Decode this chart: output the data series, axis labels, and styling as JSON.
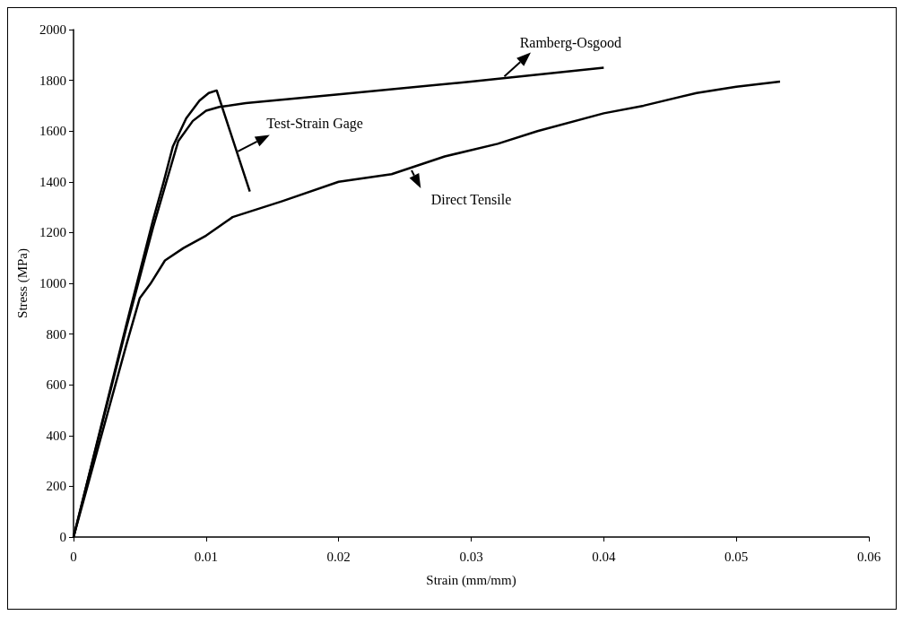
{
  "chart_data": {
    "type": "line",
    "xlabel": "Strain (mm/mm)",
    "ylabel": "Stress (MPa)",
    "xlim": [
      0,
      0.06
    ],
    "xticks": [
      0,
      0.01,
      0.02,
      0.03,
      0.04,
      0.05,
      0.06
    ],
    "ylim": [
      0,
      2000
    ],
    "yticks": [
      0,
      200,
      400,
      600,
      800,
      1000,
      1200,
      1400,
      1600,
      1800,
      2000
    ],
    "grid": false,
    "legend": false,
    "marker": "none",
    "line_style": "solid",
    "series": [
      {
        "name": "Test-Strain Gage",
        "color": "#000000",
        "x": [
          0,
          0.002,
          0.004,
          0.006,
          0.0068,
          0.0075,
          0.0085,
          0.0095,
          0.0102,
          0.0108,
          0.0133
        ],
        "values": [
          0,
          420,
          840,
          1250,
          1400,
          1540,
          1650,
          1720,
          1750,
          1760,
          1362
        ]
      },
      {
        "name": "Ramberg-Osgood",
        "color": "#000000",
        "x": [
          0,
          0.002,
          0.004,
          0.006,
          0.007,
          0.0079,
          0.009,
          0.01,
          0.011,
          0.013,
          0.02,
          0.03,
          0.04
        ],
        "values": [
          0,
          414,
          828,
          1220,
          1400,
          1560,
          1640,
          1680,
          1695,
          1710,
          1745,
          1795,
          1850
        ]
      },
      {
        "name": "Direct Tensile",
        "color": "#000000",
        "x": [
          0,
          0.002,
          0.004,
          0.005,
          0.0058,
          0.0069,
          0.0083,
          0.01,
          0.012,
          0.0157,
          0.02,
          0.024,
          0.028,
          0.032,
          0.035,
          0.04,
          0.043,
          0.047,
          0.05,
          0.0533
        ],
        "values": [
          0,
          380,
          760,
          942,
          998,
          1090,
          1139,
          1188,
          1261,
          1323,
          1400,
          1430,
          1500,
          1550,
          1600,
          1670,
          1700,
          1750,
          1775,
          1795
        ]
      }
    ]
  }
}
